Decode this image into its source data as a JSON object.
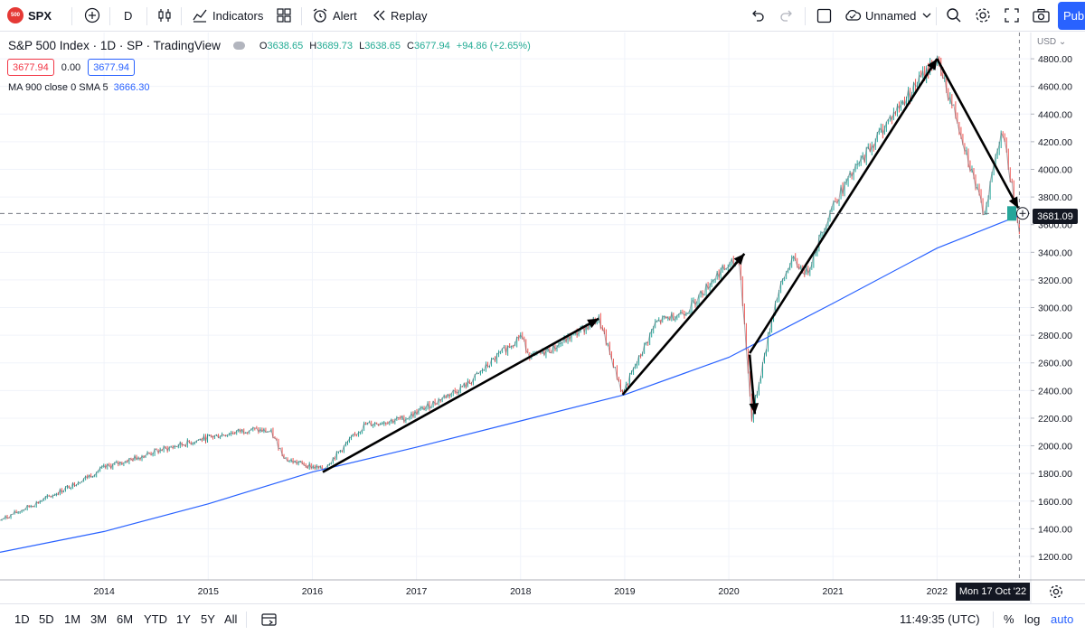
{
  "toolbar": {
    "symbol_badge": "500",
    "symbol": "SPX",
    "interval": "D",
    "indicators_label": "Indicators",
    "alert_label": "Alert",
    "replay_label": "Replay",
    "layout_name": "Unnamed",
    "publish_label": "Pub"
  },
  "legend": {
    "title": "S&P 500 Index · 1D · SP · TradingView",
    "o_label": "O",
    "o": "3638.65",
    "h_label": "H",
    "h": "3689.73",
    "l_label": "L",
    "l": "3638.65",
    "c_label": "C",
    "c": "3677.94",
    "change": "+94.86 (+2.65%)",
    "bid": "3677.94",
    "spread": "0.00",
    "ask": "3677.94",
    "ma_label": "MA 900 close 0 SMA 5",
    "ma_value": "3666.30"
  },
  "axis": {
    "currency": "USD",
    "crosshair_price": "3681.09",
    "crosshair_date": "Mon 17 Oct '22"
  },
  "bottom": {
    "ranges": [
      "1D",
      "5D",
      "1M",
      "3M",
      "6M",
      "YTD",
      "1Y",
      "5Y",
      "All"
    ],
    "time": "11:49:35 (UTC)",
    "pct_label": "%",
    "log_label": "log",
    "auto_label": "auto"
  },
  "colors": {
    "up": "#26a69a",
    "down": "#ef5350",
    "ma": "#2962ff",
    "accent": "#2962ff"
  },
  "chart_data": {
    "type": "line",
    "series": [
      {
        "name": "S&P 500 Index",
        "x": [
          2013.0,
          2013.5,
          2014.0,
          2014.5,
          2015.0,
          2015.4,
          2015.6,
          2015.75,
          2016.1,
          2016.5,
          2016.9,
          2017.5,
          2018.0,
          2018.1,
          2018.3,
          2018.75,
          2018.98,
          2019.3,
          2019.6,
          2019.9,
          2020.1,
          2020.22,
          2020.45,
          2020.6,
          2020.75,
          2021.0,
          2021.5,
          2021.99,
          2022.2,
          2022.45,
          2022.62,
          2022.79
        ],
        "values": [
          1460,
          1640,
          1840,
          1960,
          2060,
          2120,
          2100,
          1900,
          1830,
          2150,
          2200,
          2450,
          2800,
          2640,
          2700,
          2920,
          2380,
          2890,
          2980,
          3250,
          3350,
          2200,
          3050,
          3350,
          3250,
          3750,
          4320,
          4800,
          4350,
          3670,
          4300,
          3580
        ]
      },
      {
        "name": "MA 900 close 0 SMA 5",
        "x": [
          2013.0,
          2014.0,
          2015.0,
          2016.0,
          2017.0,
          2018.0,
          2019.0,
          2020.0,
          2021.0,
          2022.0,
          2022.79
        ],
        "values": [
          1230,
          1380,
          1580,
          1810,
          1990,
          2180,
          2370,
          2640,
          3030,
          3430,
          3666
        ]
      }
    ],
    "annotations": [
      {
        "from": [
          2016.1,
          1810
        ],
        "to": [
          2018.75,
          2920
        ]
      },
      {
        "from": [
          2018.98,
          2370
        ],
        "to": [
          2020.15,
          3390
        ]
      },
      {
        "from": [
          2020.2,
          2660
        ],
        "to": [
          2020.25,
          2230
        ]
      },
      {
        "from": [
          2020.2,
          2670
        ],
        "to": [
          2022.0,
          4800
        ]
      },
      {
        "from": [
          2022.0,
          4800
        ],
        "to": [
          2022.78,
          3720
        ]
      }
    ],
    "x_ticks": [
      2014,
      2015,
      2016,
      2017,
      2018,
      2019,
      2020,
      2021,
      2022
    ],
    "y_ticks": [
      1200,
      1400,
      1600,
      1800,
      2000,
      2200,
      2400,
      2600,
      2800,
      3000,
      3200,
      3400,
      3600,
      3800,
      4000,
      4200,
      4400,
      4600,
      4800
    ],
    "xlim": [
      2013.0,
      2022.9
    ],
    "ylim": [
      1030,
      4990
    ],
    "grid": true,
    "crosshair": {
      "x": 2022.79,
      "y": 3681.09
    }
  }
}
